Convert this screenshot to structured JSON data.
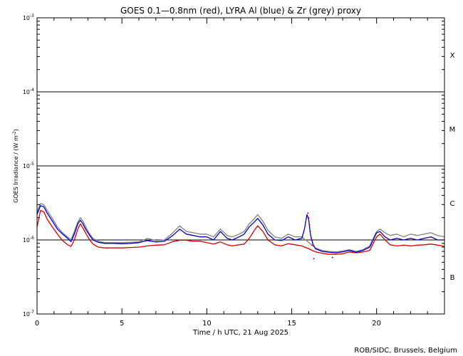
{
  "chart_data": {
    "type": "line",
    "title": "GOES 0.1—0.8nm (red), LYRA Al (blue) & Zr (grey) proxy",
    "xlabel": "Time / h UTC, 21 Aug 2025",
    "ylabel_main": "GOES Irradiance / (W m",
    "ylabel_exp": "-2",
    "ylabel_close": ")",
    "footer": "ROB/SIDC, Brussels, Belgium",
    "xlim": [
      0,
      24
    ],
    "ylim": [
      1e-07,
      0.001
    ],
    "yscale": "log",
    "x_ticks": [
      0,
      5,
      10,
      15,
      20
    ],
    "x_tick_labels": [
      "0",
      "5",
      "10",
      "15",
      "20"
    ],
    "y_ticks": [
      {
        "value": 0.001,
        "base": "10",
        "exp": "-3"
      },
      {
        "value": 0.0001,
        "base": "10",
        "exp": "-4"
      },
      {
        "value": 1e-05,
        "base": "10",
        "exp": "-5"
      },
      {
        "value": 1e-06,
        "base": "10",
        "exp": "-6"
      },
      {
        "value": 1e-07,
        "base": "10",
        "exp": "-7"
      }
    ],
    "threshold_lines": [
      0.0001,
      1e-05,
      1e-06
    ],
    "flare_classes": [
      {
        "label": "X",
        "value": 0.000316
      },
      {
        "label": "M",
        "value": 3.16e-05
      },
      {
        "label": "C",
        "value": 3.16e-06
      },
      {
        "label": "B",
        "value": 3.16e-07
      }
    ],
    "series": [
      {
        "name": "red",
        "color": "#dd0000",
        "x": [
          0,
          0.2,
          0.4,
          0.6,
          0.9,
          1.2,
          1.5,
          1.8,
          2.0,
          2.2,
          2.4,
          2.55,
          2.7,
          2.9,
          3.1,
          3.3,
          3.6,
          4,
          4.5,
          5,
          5.5,
          6,
          6.5,
          7,
          7.5,
          8,
          8.4,
          8.8,
          9.2,
          9.6,
          10,
          10.4,
          10.8,
          11.2,
          11.5,
          11.9,
          12.2,
          12.5,
          12.8,
          13.0,
          13.3,
          13.6,
          14,
          14.4,
          14.8,
          15.2,
          15.6,
          16,
          16.4,
          16.8,
          17.2,
          17.6,
          18.0,
          18.4,
          18.8,
          19.2,
          19.6,
          19.8,
          20.0,
          20.2,
          20.5,
          20.8,
          21.2,
          21.6,
          22.0,
          22.4,
          22.8,
          23.2,
          23.6,
          24
        ],
        "y": [
          1.5e-06,
          2.5e-06,
          2.4e-06,
          1.9e-06,
          1.5e-06,
          1.2e-06,
          9.8e-07,
          8.6e-07,
          8.2e-07,
          1e-06,
          1.4e-06,
          1.65e-06,
          1.45e-06,
          1.2e-06,
          1e-06,
          8.8e-07,
          8e-07,
          7.8e-07,
          7.8e-07,
          7.8e-07,
          7.9e-07,
          8e-07,
          8.3e-07,
          8.5e-07,
          8.6e-07,
          9.5e-07,
          9.9e-07,
          9.9e-07,
          9.6e-07,
          9.6e-07,
          9.2e-07,
          8.8e-07,
          9.4e-07,
          8.6e-07,
          8.3e-07,
          8.6e-07,
          8.8e-07,
          1.05e-06,
          1.35e-06,
          1.55e-06,
          1.3e-06,
          1e-06,
          8.6e-07,
          8.3e-07,
          8.9e-07,
          8.6e-07,
          8.3e-07,
          7.6e-07,
          6.9e-07,
          6.6e-07,
          6.4e-07,
          6.4e-07,
          6.5e-07,
          6.9e-07,
          6.7e-07,
          6.9e-07,
          7.2e-07,
          9e-07,
          1.1e-06,
          1.2e-06,
          1e-06,
          8.6e-07,
          8.3e-07,
          8.5e-07,
          8.3e-07,
          8.5e-07,
          8.6e-07,
          8.8e-07,
          8.5e-07,
          8.2e-07
        ]
      },
      {
        "name": "blue",
        "color": "#0000cc",
        "x": [
          0,
          0.2,
          0.4,
          0.6,
          0.9,
          1.2,
          1.5,
          1.8,
          2.0,
          2.2,
          2.4,
          2.55,
          2.7,
          2.9,
          3.1,
          3.3,
          3.6,
          4,
          4.5,
          5,
          5.5,
          6,
          6.5,
          7,
          7.5,
          8,
          8.4,
          8.8,
          9.2,
          9.6,
          10,
          10.4,
          10.8,
          11.2,
          11.5,
          11.9,
          12.2,
          12.5,
          12.8,
          13.0,
          13.3,
          13.6,
          14,
          14.4,
          14.8,
          15.2,
          15.6,
          15.75,
          15.9,
          16.0,
          16.1,
          16.25,
          16.4,
          16.8,
          17.2,
          17.6,
          18.0,
          18.4,
          18.8,
          19.2,
          19.6,
          19.8,
          20.0,
          20.2,
          20.5,
          20.8,
          21.2,
          21.6,
          22.0,
          22.4,
          22.8,
          23.2,
          23.6,
          24
        ],
        "y": [
          2.2e-06,
          2.9e-06,
          2.8e-06,
          2.3e-06,
          1.8e-06,
          1.4e-06,
          1.2e-06,
          1.05e-06,
          9.5e-07,
          1.2e-06,
          1.65e-06,
          1.85e-06,
          1.65e-06,
          1.35e-06,
          1.15e-06,
          1e-06,
          9.3e-07,
          9e-07,
          9e-07,
          8.9e-07,
          9e-07,
          9.2e-07,
          9.8e-07,
          9.4e-07,
          9.6e-07,
          1.15e-06,
          1.4e-06,
          1.2e-06,
          1.15e-06,
          1.1e-06,
          1.1e-06,
          1e-06,
          1.3e-06,
          1.05e-06,
          1e-06,
          1.1e-06,
          1.2e-06,
          1.5e-06,
          1.75e-06,
          1.95e-06,
          1.6e-06,
          1.2e-06,
          1e-06,
          9.8e-07,
          1.1e-06,
          1e-06,
          1.05e-06,
          1.4e-06,
          2.2e-06,
          1.9e-06,
          1.2e-06,
          8.8e-07,
          7.6e-07,
          7e-07,
          6.8e-07,
          6.7e-07,
          6.9e-07,
          7.2e-07,
          6.8e-07,
          7.2e-07,
          8e-07,
          1e-06,
          1.25e-06,
          1.3e-06,
          1.1e-06,
          1e-06,
          1.05e-06,
          1e-06,
          1.05e-06,
          1e-06,
          1.05e-06,
          1.1e-06,
          1e-06,
          1e-06
        ]
      },
      {
        "name": "grey",
        "color": "#808080",
        "x": [
          0,
          0.2,
          0.4,
          0.6,
          0.9,
          1.2,
          1.5,
          1.8,
          2.0,
          2.2,
          2.4,
          2.55,
          2.7,
          2.9,
          3.1,
          3.3,
          3.6,
          4,
          4.5,
          5,
          5.5,
          6,
          6.5,
          7,
          7.5,
          8,
          8.4,
          8.8,
          9.2,
          9.6,
          10,
          10.4,
          10.8,
          11.2,
          11.5,
          11.9,
          12.2,
          12.5,
          12.8,
          13.0,
          13.3,
          13.6,
          14,
          14.4,
          14.8,
          15.2,
          15.6,
          16.4,
          16.8,
          17.2,
          17.6,
          18.0,
          18.4,
          18.8,
          19.2,
          19.6,
          19.8,
          20.0,
          20.2,
          20.5,
          20.8,
          21.2,
          21.6,
          22.0,
          22.4,
          22.8,
          23.2,
          23.6,
          24
        ],
        "y": [
          2.4e-06,
          3.1e-06,
          3e-06,
          2.5e-06,
          1.95e-06,
          1.5e-06,
          1.25e-06,
          1.1e-06,
          1e-06,
          1.3e-06,
          1.75e-06,
          2e-06,
          1.8e-06,
          1.45e-06,
          1.2e-06,
          1.05e-06,
          9.6e-07,
          9.2e-07,
          9.2e-07,
          9.2e-07,
          9.3e-07,
          9.4e-07,
          1.05e-06,
          9.8e-07,
          1e-06,
          1.25e-06,
          1.55e-06,
          1.3e-06,
          1.25e-06,
          1.2e-06,
          1.2e-06,
          1.1e-06,
          1.4e-06,
          1.15e-06,
          1.1e-06,
          1.2e-06,
          1.3e-06,
          1.65e-06,
          1.95e-06,
          2.2e-06,
          1.8e-06,
          1.35e-06,
          1.1e-06,
          1.05e-06,
          1.2e-06,
          1.1e-06,
          1.1e-06,
          7.8e-07,
          7.2e-07,
          7e-07,
          6.9e-07,
          7.1e-07,
          7.4e-07,
          7e-07,
          7.4e-07,
          8.3e-07,
          1.05e-06,
          1.3e-06,
          1.4e-06,
          1.25e-06,
          1.15e-06,
          1.2e-06,
          1.1e-06,
          1.2e-06,
          1.15e-06,
          1.2e-06,
          1.25e-06,
          1.15e-06,
          1.1e-06
        ]
      }
    ],
    "scatter_points": [
      {
        "series": "red",
        "x": 15.95,
        "y": 2.3e-06
      },
      {
        "series": "red",
        "x": 16.0,
        "y": 2e-06
      },
      {
        "series": "red",
        "x": 16.05,
        "y": 1.6e-06
      },
      {
        "series": "red",
        "x": 16.1,
        "y": 1.3e-06
      },
      {
        "series": "red",
        "x": 16.15,
        "y": 1.05e-06
      },
      {
        "series": "red",
        "x": 16.2,
        "y": 8.5e-07
      },
      {
        "series": "red",
        "x": 17.4,
        "y": 5.8e-07
      },
      {
        "series": "red",
        "x": 16.3,
        "y": 5.6e-07
      }
    ]
  }
}
